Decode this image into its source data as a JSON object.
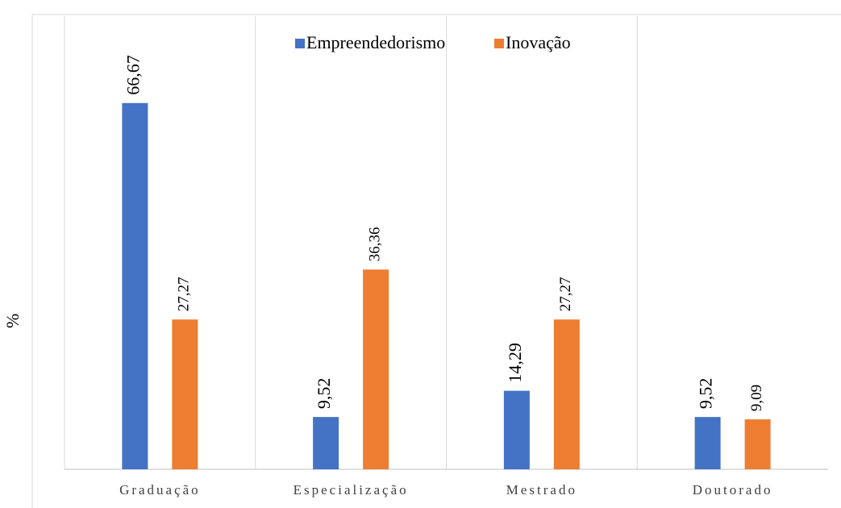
{
  "chart_data": {
    "type": "bar",
    "y_label": "%",
    "categories": [
      "Graduação",
      "Especialização",
      "Mestrado",
      "Doutorado"
    ],
    "series": [
      {
        "name": "Empreendedorismo",
        "color": "#4472c4",
        "values": [
          66.67,
          9.52,
          14.29,
          9.52
        ],
        "value_labels": [
          "66,67",
          "9,52",
          "14,29",
          "9,52"
        ]
      },
      {
        "name": "Inovação",
        "color": "#ed7d31",
        "values": [
          27.27,
          36.36,
          27.27,
          9.09
        ],
        "value_labels": [
          "27,27",
          "36,36",
          "27,27",
          "9,09"
        ]
      }
    ],
    "ylim": [
      0,
      80
    ],
    "legend": "top"
  }
}
